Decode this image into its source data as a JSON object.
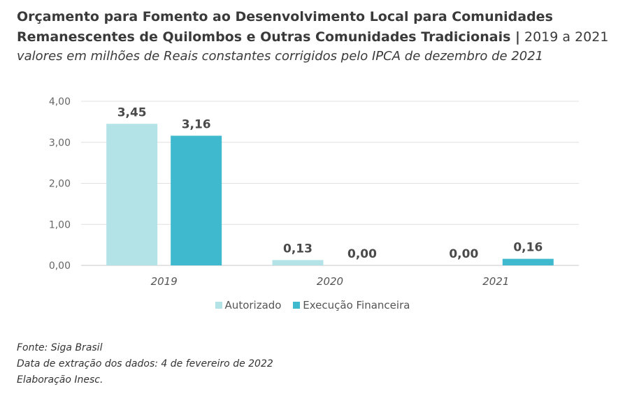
{
  "header": {
    "title_bold": "Orçamento para Fomento ao Desenvolvimento Local para Comunidades Remanescentes de Quilombos e Outras Comunidades Tradicionais |",
    "title_years": "2019 a 2021",
    "subtitle": "valores em milhões de Reais constantes corrigidos pelo IPCA de dezembro de 2021"
  },
  "chart_data": {
    "type": "bar",
    "categories": [
      "2019",
      "2020",
      "2021"
    ],
    "series": [
      {
        "name": "Autorizado",
        "values": [
          3.45,
          0.13,
          0.0
        ],
        "labels": [
          "3,45",
          "0,13",
          "0,00"
        ],
        "color": "#b3e3e6"
      },
      {
        "name": "Execução Financeira",
        "values": [
          3.16,
          0.0,
          0.16
        ],
        "labels": [
          "3,16",
          "0,00",
          "0,16"
        ],
        "color": "#3fb9ce"
      }
    ],
    "ylim": [
      0,
      4
    ],
    "yticks": [
      0,
      1,
      2,
      3,
      4
    ],
    "ytick_labels": [
      "0,00",
      "1,00",
      "2,00",
      "3,00",
      "4,00"
    ],
    "grid": true,
    "legend_position": "bottom"
  },
  "footer": {
    "source": "Fonte: Siga Brasil",
    "extraction_date": "Data de extração dos dados: 4 de fevereiro de 2022",
    "credit": "Elaboração Inesc."
  }
}
